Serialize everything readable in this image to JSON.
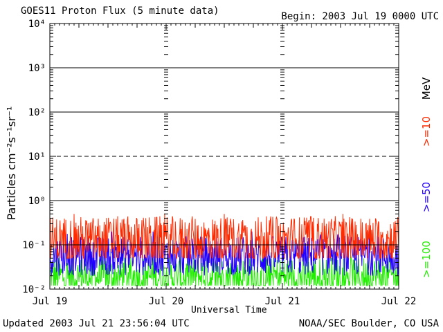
{
  "header": {
    "title": "GOES11 Proton Flux (5 minute data)",
    "begin": "Begin: 2003 Jul 19 0000 UTC"
  },
  "footer": {
    "updated": "Updated 2003 Jul 21 23:56:04 UTC",
    "credit": "NOAA/SEC Boulder, CO USA"
  },
  "chart_data": {
    "type": "line",
    "title": "GOES11 Proton Flux (5 minute data)",
    "xlabel": "Universal Time",
    "ylabel": "Particles cm⁻²s⁻¹sr⁻¹",
    "yscale": "log",
    "ylim": [
      0.01,
      10000
    ],
    "ytick_labels": [
      "10⁻²",
      "10⁻¹",
      "10⁰",
      "10¹",
      "10²",
      "10³",
      "10⁴"
    ],
    "xtick_labels": [
      "Jul 19",
      "Jul 20",
      "Jul 21",
      "Jul 22"
    ],
    "x_range_days": [
      0,
      3
    ],
    "units_label": "MeV",
    "threshold_line": 0.1,
    "dashed_gridline": 10,
    "series": [
      {
        "name": ">=10",
        "color": "#ff2a00",
        "typical_range": [
          0.05,
          0.5
        ]
      },
      {
        "name": ">=50",
        "color": "#2200ff",
        "typical_range": [
          0.02,
          0.2
        ]
      },
      {
        "name": ">=100",
        "color": "#22ee00",
        "typical_range": [
          0.012,
          0.08
        ]
      }
    ]
  }
}
